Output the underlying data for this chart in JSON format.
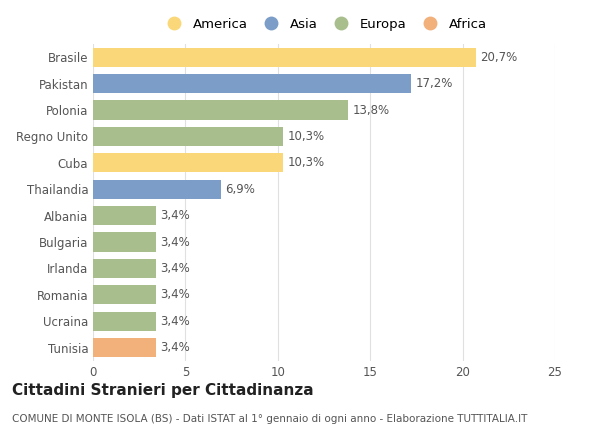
{
  "categories": [
    "Brasile",
    "Pakistan",
    "Polonia",
    "Regno Unito",
    "Cuba",
    "Thailandia",
    "Albania",
    "Bulgaria",
    "Irlanda",
    "Romania",
    "Ucraina",
    "Tunisia"
  ],
  "values": [
    20.7,
    17.2,
    13.8,
    10.3,
    10.3,
    6.9,
    3.4,
    3.4,
    3.4,
    3.4,
    3.4,
    3.4
  ],
  "labels": [
    "20,7%",
    "17,2%",
    "13,8%",
    "10,3%",
    "10,3%",
    "6,9%",
    "3,4%",
    "3,4%",
    "3,4%",
    "3,4%",
    "3,4%",
    "3,4%"
  ],
  "continents": [
    "America",
    "Asia",
    "Europa",
    "Europa",
    "America",
    "Asia",
    "Europa",
    "Europa",
    "Europa",
    "Europa",
    "Europa",
    "Africa"
  ],
  "colors": {
    "America": "#FAD87A",
    "Asia": "#7B9DC8",
    "Europa": "#A8BE8C",
    "Africa": "#F2B07A"
  },
  "legend_order": [
    "America",
    "Asia",
    "Europa",
    "Africa"
  ],
  "legend_colors": [
    "#FAD87A",
    "#7B9DC8",
    "#A8BE8C",
    "#F2B07A"
  ],
  "title": "Cittadini Stranieri per Cittadinanza",
  "subtitle": "COMUNE DI MONTE ISOLA (BS) - Dati ISTAT al 1° gennaio di ogni anno - Elaborazione TUTTITALIA.IT",
  "xlim": [
    0,
    25
  ],
  "xticks": [
    0,
    5,
    10,
    15,
    20,
    25
  ],
  "background_color": "#ffffff",
  "grid_color": "#e0e0e0",
  "bar_height": 0.72,
  "title_fontsize": 11,
  "subtitle_fontsize": 7.5,
  "label_fontsize": 8.5,
  "tick_fontsize": 8.5,
  "legend_fontsize": 9.5
}
